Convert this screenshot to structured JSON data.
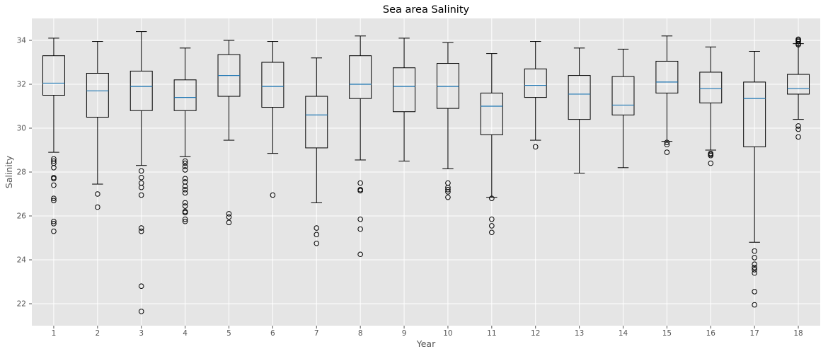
{
  "chart_data": {
    "type": "box",
    "title": "Sea area Salinity",
    "xlabel": "Year",
    "ylabel": "Salinity",
    "ylim": [
      21,
      35
    ],
    "yticks": [
      22,
      24,
      26,
      28,
      30,
      32,
      34
    ],
    "grid": true,
    "style": "ggplot",
    "colors": {
      "plot_background": "#e5e5e5",
      "grid": "#ffffff",
      "box": "#000000",
      "median": "#1f77b4",
      "flier": "#000000"
    },
    "categories": [
      "1",
      "2",
      "3",
      "4",
      "5",
      "6",
      "7",
      "8",
      "9",
      "10",
      "11",
      "12",
      "13",
      "14",
      "15",
      "16",
      "17",
      "18"
    ],
    "boxes": [
      {
        "whislo": 28.9,
        "q1": 31.5,
        "med": 32.05,
        "q3": 33.3,
        "whishi": 34.1,
        "fliers": [
          28.6,
          28.5,
          28.4,
          28.2,
          27.75,
          27.7,
          27.4,
          26.8,
          26.7,
          25.75,
          25.65,
          25.3
        ]
      },
      {
        "whislo": 27.45,
        "q1": 30.5,
        "med": 31.7,
        "q3": 32.5,
        "whishi": 33.95,
        "fliers": [
          27.0,
          26.4
        ]
      },
      {
        "whislo": 28.3,
        "q1": 30.8,
        "med": 31.9,
        "q3": 32.6,
        "whishi": 34.4,
        "fliers": [
          28.05,
          27.75,
          27.5,
          27.3,
          26.95,
          25.45,
          25.3,
          22.8,
          21.65
        ]
      },
      {
        "whislo": 28.7,
        "q1": 30.8,
        "med": 31.4,
        "q3": 32.2,
        "whishi": 33.65,
        "fliers": [
          28.5,
          28.4,
          28.25,
          28.1,
          27.7,
          27.55,
          27.35,
          27.2,
          27.05,
          26.6,
          26.45,
          26.2,
          26.15,
          25.85,
          25.75
        ]
      },
      {
        "whislo": 29.45,
        "q1": 31.45,
        "med": 32.4,
        "q3": 33.35,
        "whishi": 34.0,
        "fliers": [
          26.1,
          25.95,
          25.7
        ]
      },
      {
        "whislo": 28.85,
        "q1": 30.95,
        "med": 31.9,
        "q3": 33.0,
        "whishi": 33.95,
        "fliers": [
          26.95
        ]
      },
      {
        "whislo": 26.6,
        "q1": 29.1,
        "med": 30.6,
        "q3": 31.45,
        "whishi": 33.2,
        "fliers": [
          25.45,
          25.15,
          24.75
        ]
      },
      {
        "whislo": 28.55,
        "q1": 31.35,
        "med": 32.0,
        "q3": 33.3,
        "whishi": 34.2,
        "fliers": [
          27.5,
          27.2,
          27.15,
          25.85,
          25.4,
          24.25
        ]
      },
      {
        "whislo": 28.5,
        "q1": 30.75,
        "med": 31.9,
        "q3": 32.75,
        "whishi": 34.1,
        "fliers": []
      },
      {
        "whislo": 28.15,
        "q1": 30.9,
        "med": 31.9,
        "q3": 32.95,
        "whishi": 33.9,
        "fliers": [
          27.5,
          27.3,
          27.2,
          27.1,
          26.85
        ]
      },
      {
        "whislo": 26.85,
        "q1": 29.7,
        "med": 31.0,
        "q3": 31.6,
        "whishi": 33.4,
        "fliers": [
          26.8,
          25.85,
          25.55,
          25.25
        ]
      },
      {
        "whislo": 29.45,
        "q1": 31.4,
        "med": 31.95,
        "q3": 32.7,
        "whishi": 33.95,
        "fliers": [
          29.15
        ]
      },
      {
        "whislo": 27.95,
        "q1": 30.4,
        "med": 31.55,
        "q3": 32.4,
        "whishi": 33.65,
        "fliers": []
      },
      {
        "whislo": 28.2,
        "q1": 30.6,
        "med": 31.05,
        "q3": 32.35,
        "whishi": 33.6,
        "fliers": []
      },
      {
        "whislo": 29.4,
        "q1": 31.6,
        "med": 32.1,
        "q3": 33.05,
        "whishi": 34.2,
        "fliers": [
          29.35,
          29.25,
          28.9
        ]
      },
      {
        "whislo": 29.0,
        "q1": 31.15,
        "med": 31.8,
        "q3": 32.55,
        "whishi": 33.7,
        "fliers": [
          28.85,
          28.8,
          28.75,
          28.4
        ]
      },
      {
        "whislo": 24.8,
        "q1": 29.15,
        "med": 31.35,
        "q3": 32.1,
        "whishi": 33.5,
        "fliers": [
          24.4,
          24.1,
          23.8,
          23.65,
          23.55,
          23.4,
          22.55,
          21.95
        ]
      },
      {
        "whislo": 30.4,
        "q1": 31.55,
        "med": 31.8,
        "q3": 32.45,
        "whishi": 33.85,
        "fliers": [
          34.05,
          34.0,
          33.95,
          33.85,
          33.8,
          30.1,
          29.95,
          29.6
        ]
      }
    ]
  }
}
